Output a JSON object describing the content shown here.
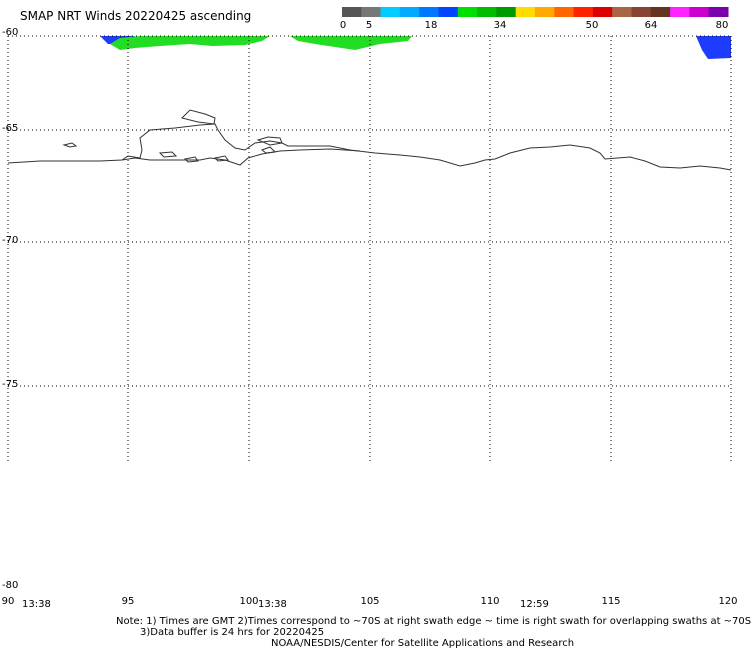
{
  "title": "SMAP NRT Winds 20220425 ascending",
  "colorbar": {
    "labels": [
      "0",
      "5",
      "18",
      "34",
      "50",
      "64",
      "80"
    ],
    "segments": [
      {
        "color": "#555555"
      },
      {
        "color": "#777777"
      },
      {
        "color": "#00ccff"
      },
      {
        "color": "#00aaff"
      },
      {
        "color": "#0077ff"
      },
      {
        "color": "#0044ff"
      },
      {
        "color": "#00dd00"
      },
      {
        "color": "#00bb00"
      },
      {
        "color": "#009900"
      },
      {
        "color": "#ffdd00"
      },
      {
        "color": "#ffaa00"
      },
      {
        "color": "#ff6600"
      },
      {
        "color": "#ff2200"
      },
      {
        "color": "#dd0000"
      },
      {
        "color": "#aa6644"
      },
      {
        "color": "#884433"
      },
      {
        "color": "#663322"
      },
      {
        "color": "#ff22ff"
      },
      {
        "color": "#cc00cc"
      },
      {
        "color": "#7700aa"
      }
    ]
  },
  "map": {
    "lat_labels": [
      "-60",
      "-65",
      "-70",
      "-75",
      "-80"
    ],
    "lon_labels": [
      "90",
      "95",
      "100",
      "105",
      "110",
      "115",
      "120"
    ],
    "time_labels": [
      "13:38",
      "13:38",
      "12:59"
    ]
  },
  "notes": {
    "line1": "Note: 1) Times are GMT 2)Times correspond to ~70S at right swath edge ~ time is right swath for overlapping swaths at ~70S",
    "line2": "3)Data buffer is 24 hrs for 20220425",
    "line3": "NOAA/NESDIS/Center for Satellite Applications and Research"
  },
  "colors": {
    "coast": "#333333",
    "grid": "#000000"
  }
}
